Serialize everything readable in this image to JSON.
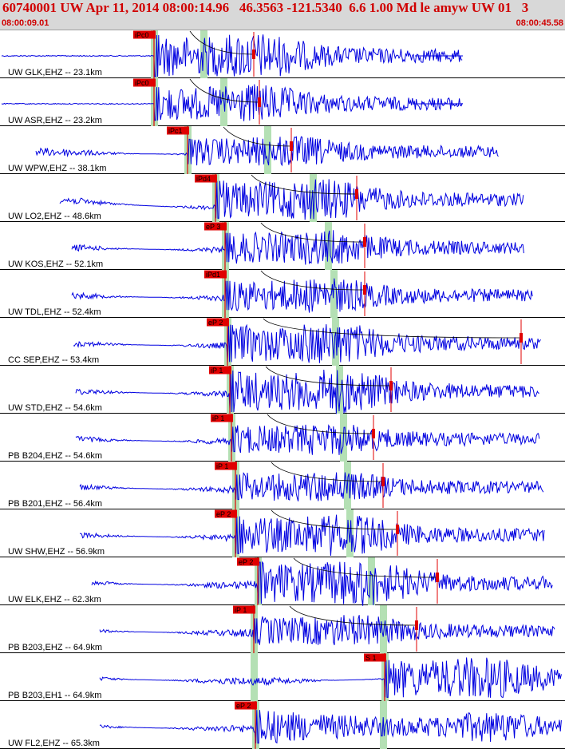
{
  "header": {
    "title": "60740001 UW Apr 11, 2014 08:00:14.96   46.3563 -121.5340  6.6 1.00 Md le amyw UW 01   3",
    "start_time": "08:00:09.01",
    "end_time": "08:00:45.58"
  },
  "colors": {
    "header_bg": "#d8d8d8",
    "header_text": "#d00000",
    "waveform": "#0000e0",
    "pick_marker": "#e00000",
    "window_band": "#b4e0b4",
    "coda_curve": "#000000"
  },
  "traces": [
    {
      "label": "UW GLK,EHZ -- 23.1km",
      "pick": "iPc0"
    },
    {
      "label": "UW ASR,EHZ -- 23.2km",
      "pick": "iPc0"
    },
    {
      "label": "UW WPW,EHZ -- 38.1km",
      "pick": "iPc1"
    },
    {
      "label": "UW LO2,EHZ -- 48.6km",
      "pick": "iPd4"
    },
    {
      "label": "UW KOS,EHZ -- 52.1km",
      "pick": "eP 3"
    },
    {
      "label": "UW TDL,EHZ -- 52.4km",
      "pick": "iPd1"
    },
    {
      "label": "CC SEP,EHZ -- 53.4km",
      "pick": "eP 2"
    },
    {
      "label": "UW STD,EHZ -- 54.6km",
      "pick": "iP 1"
    },
    {
      "label": "PB B204,EHZ -- 54.6km",
      "pick": "iP 1"
    },
    {
      "label": "PB B201,EHZ -- 56.4km",
      "pick": "iP 1"
    },
    {
      "label": "UW SHW,EHZ -- 56.9km",
      "pick": "eP 2"
    },
    {
      "label": "UW ELK,EHZ -- 62.3km",
      "pick": "eP 2"
    },
    {
      "label": "PB B203,EHZ -- 64.9km",
      "pick": "iP 1"
    },
    {
      "label": "PB B203,EH1 -- 64.9km",
      "pick": "S 1"
    },
    {
      "label": "UW FL2,EHZ -- 65.3km",
      "pick": "eP 2"
    }
  ]
}
